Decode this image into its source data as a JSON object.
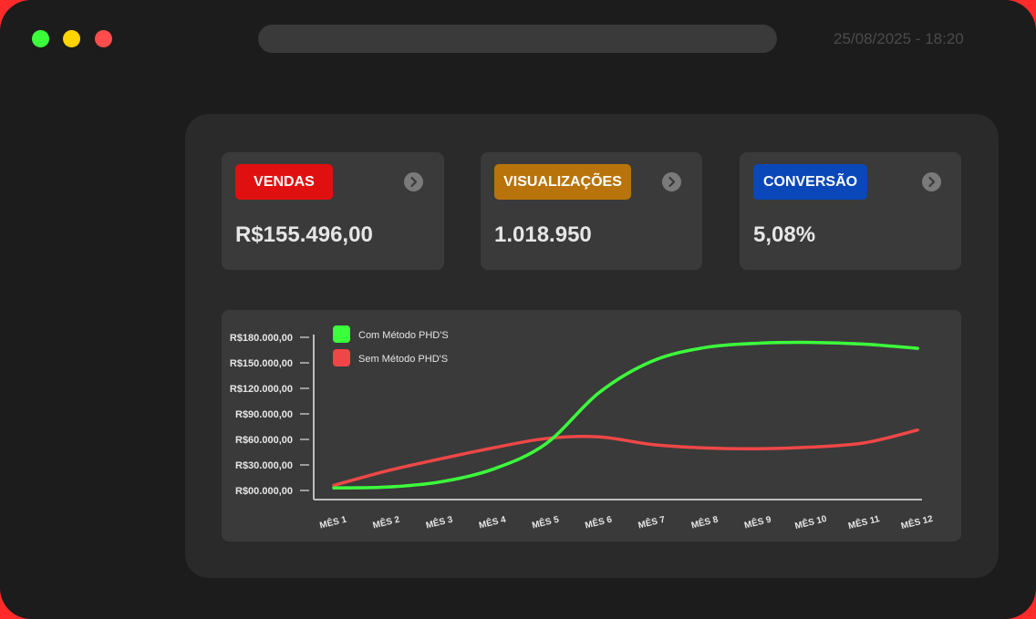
{
  "window": {
    "datetime": "25/08/2025 - 18:20",
    "dots": {
      "green": "#3cff3c",
      "yellow": "#ffd400",
      "red": "#ff4d4d"
    }
  },
  "cards": [
    {
      "label": "VENDAS",
      "value": "R$155.496,00",
      "color": "#e01010",
      "icon": "chevron-right-icon"
    },
    {
      "label": "VISUALIZAÇÕES",
      "value": "1.018.950",
      "color": "#b8740a",
      "icon": "chevron-right-icon"
    },
    {
      "label": "CONVERSÃO",
      "value": "5,08%",
      "color": "#0a47b8",
      "icon": "chevron-right-icon"
    }
  ],
  "chart_data": {
    "type": "line",
    "title": "",
    "xlabel": "",
    "ylabel": "",
    "categories": [
      "MÊS 1",
      "MÊS 2",
      "MÊS 3",
      "MÊS 4",
      "MÊS 5",
      "MÊS 6",
      "MÊS 7",
      "MÊS 8",
      "MÊS 9",
      "MÊS 10",
      "MÊS 11",
      "MÊS 12"
    ],
    "y_ticks": [
      "R$00.000,00",
      "R$30.000,00",
      "R$60.000,00",
      "R$90.000,00",
      "R$120.000,00",
      "R$150.000,00",
      "R$180.000,00"
    ],
    "ylim": [
      0,
      180000
    ],
    "legend_position": "top-left",
    "grid": false,
    "series": [
      {
        "name": "Com Método PHD'S",
        "color": "#3cff3c",
        "values": [
          3000,
          4000,
          10000,
          25000,
          55000,
          115000,
          152000,
          168000,
          173000,
          174000,
          172000,
          167000
        ]
      },
      {
        "name": "Sem Método PHD'S",
        "color": "#ef4747",
        "values": [
          6000,
          23000,
          37000,
          50000,
          61000,
          63000,
          54000,
          50000,
          49000,
          51000,
          56000,
          71000
        ]
      }
    ]
  }
}
